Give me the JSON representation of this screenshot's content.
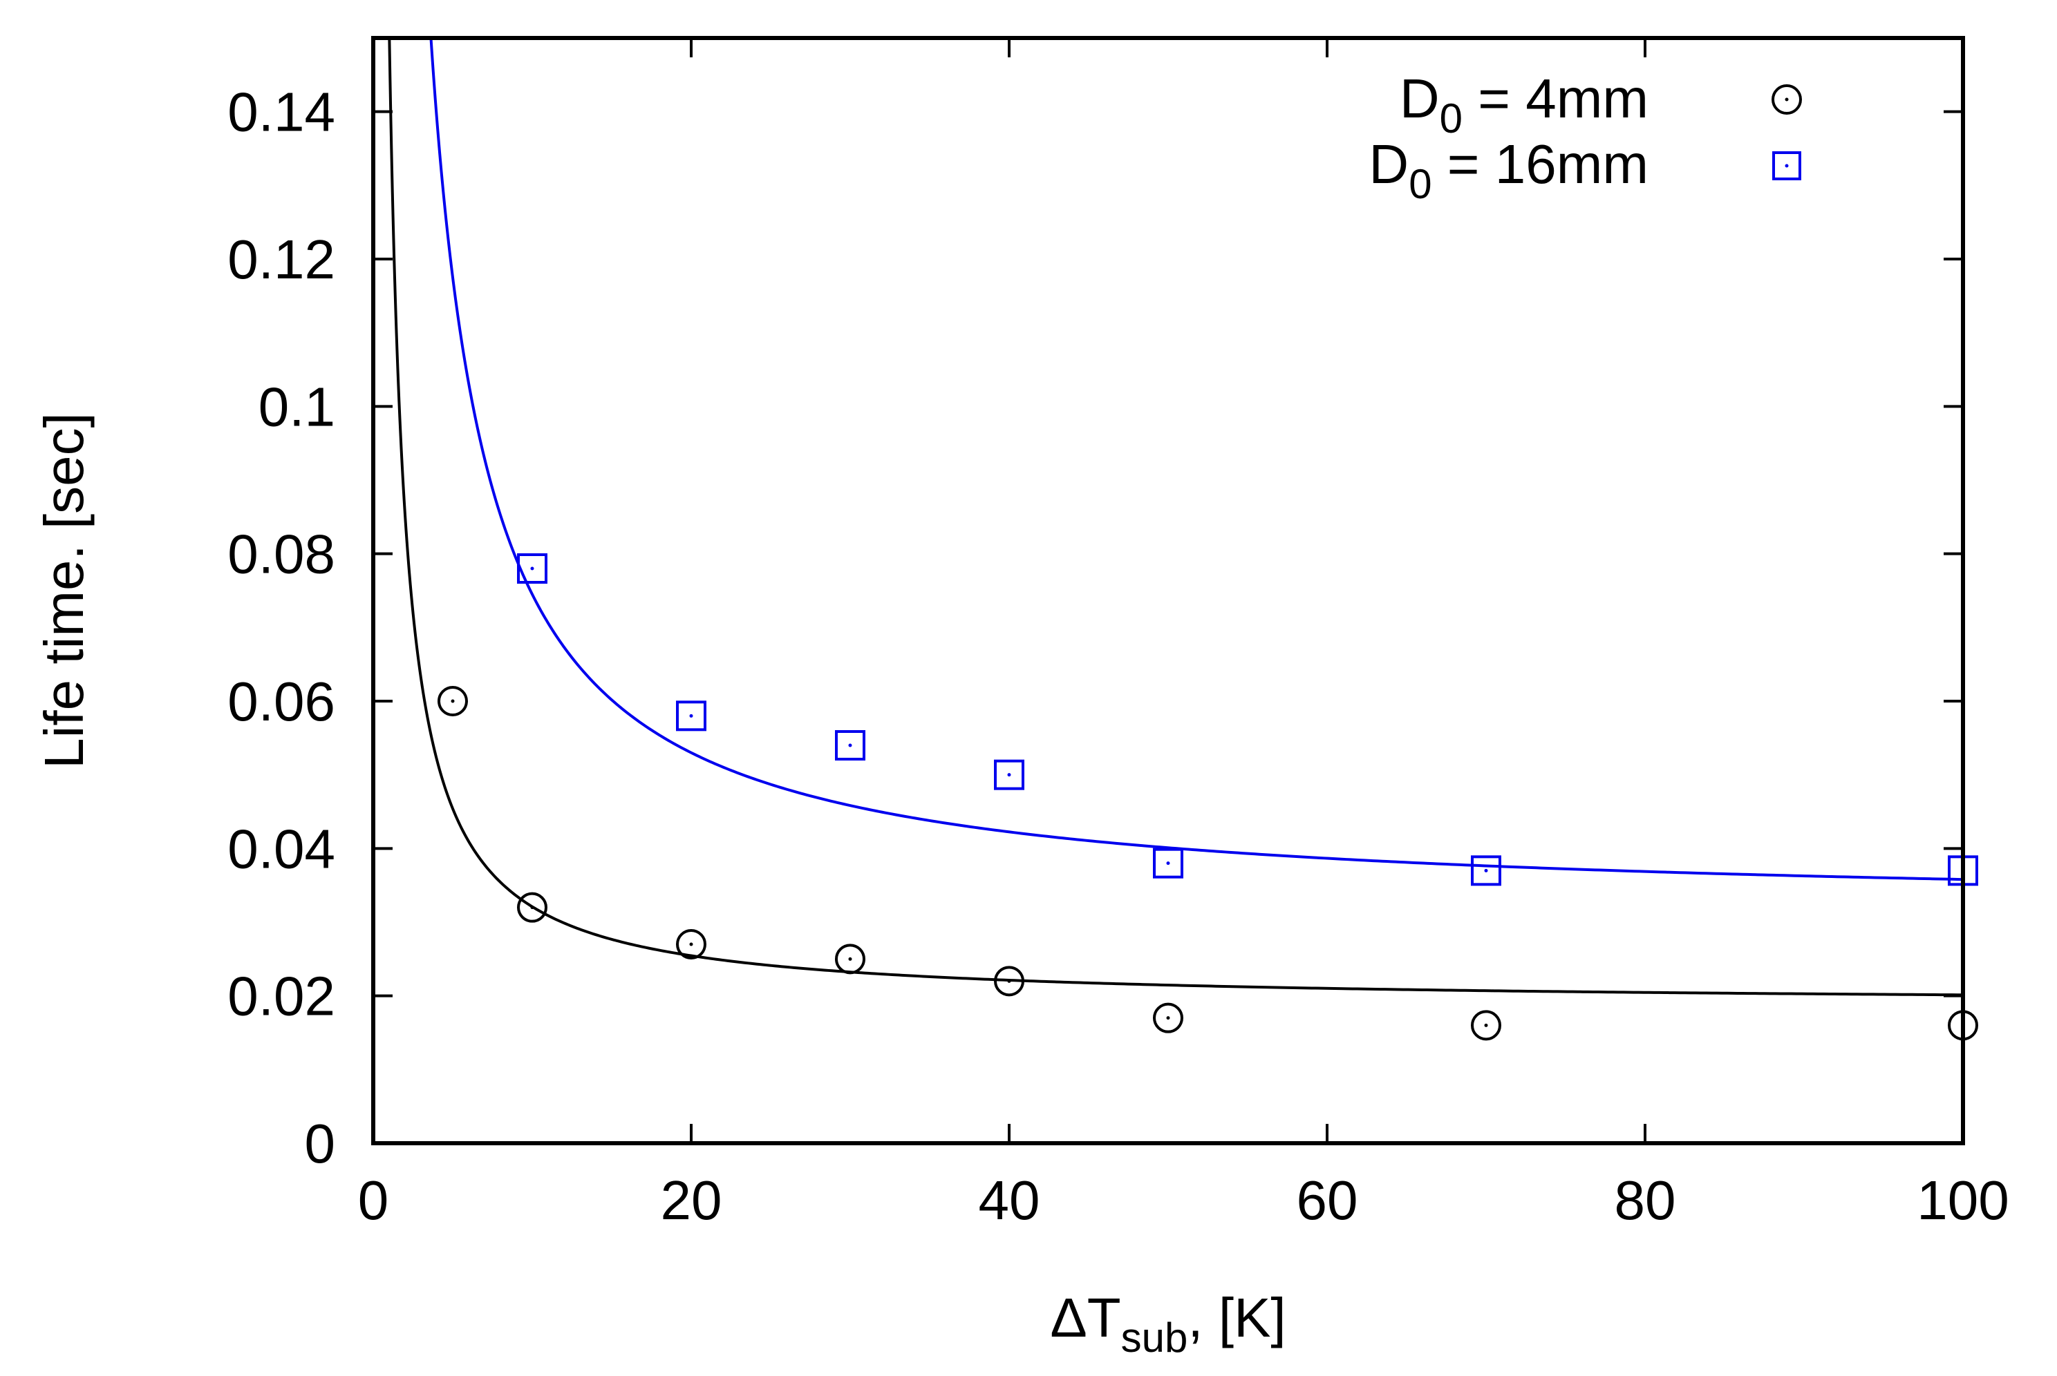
{
  "chart_data": {
    "type": "scatter",
    "title": "",
    "xlabel": {
      "prefix": "ΔT",
      "sub": "sub",
      "suffix": ", [K]"
    },
    "ylabel": "Life time. [sec]",
    "xlim": [
      0,
      100
    ],
    "ylim": [
      0,
      0.15
    ],
    "x_ticks": [
      0,
      20,
      40,
      60,
      80,
      100
    ],
    "x_tick_labels": [
      "0",
      "20",
      "40",
      "60",
      "80",
      "100"
    ],
    "y_ticks": [
      0,
      0.02,
      0.04,
      0.06,
      0.08,
      0.1,
      0.12,
      0.14
    ],
    "y_tick_labels": [
      "0",
      "0.02",
      "0.04",
      "0.06",
      "0.08",
      "0.1",
      "0.12",
      "0.14"
    ],
    "legend_position": "top-right",
    "series": [
      {
        "name": "D0 = 4mm",
        "label_main": "D",
        "label_sub": "0",
        "label_rest": " = 4mm",
        "marker": "circle",
        "color": "#000000",
        "points": [
          [
            5,
            0.06
          ],
          [
            10,
            0.032
          ],
          [
            20,
            0.027
          ],
          [
            30,
            0.025
          ],
          [
            40,
            0.022
          ],
          [
            50,
            0.017
          ],
          [
            70,
            0.016
          ],
          [
            100,
            0.016
          ]
        ],
        "fit": {
          "form": "a + b / x",
          "a": 0.0188,
          "b": 0.133
        }
      },
      {
        "name": "D0 = 16mm",
        "label_main": "D",
        "label_sub": "0",
        "label_rest": " = 16mm",
        "marker": "square",
        "color": "#0000ee",
        "points": [
          [
            10,
            0.078
          ],
          [
            20,
            0.058
          ],
          [
            30,
            0.054
          ],
          [
            40,
            0.05
          ],
          [
            50,
            0.038
          ],
          [
            70,
            0.037
          ],
          [
            100,
            0.037
          ]
        ],
        "fit": {
          "form": "a + b / x",
          "a": 0.0315,
          "b": 0.43
        }
      }
    ]
  }
}
